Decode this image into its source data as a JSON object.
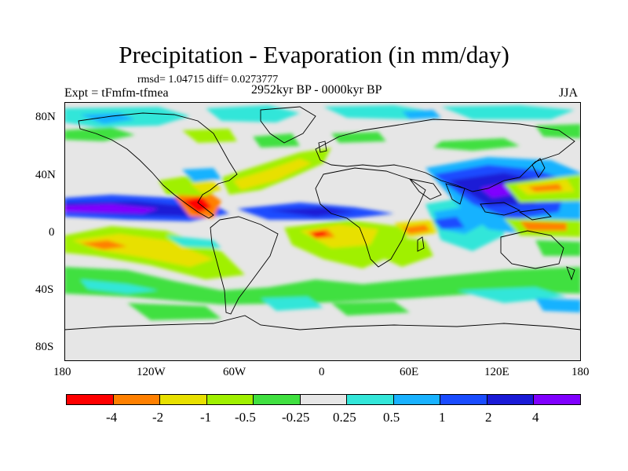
{
  "title": "Precipitation - Evaporation (in mm/day)",
  "stats": "rmsd= 1.04715 diff= 0.0273777",
  "experiment": "Expt = tFmfm-tfmea",
  "period": "2952kyr BP - 0000kyr BP",
  "season": "JJA",
  "axes": {
    "lat_ticks": [
      "80N",
      "40N",
      "0",
      "40S",
      "80S"
    ],
    "lon_ticks": [
      "180",
      "120W",
      "60W",
      "0",
      "60E",
      "120E",
      "180"
    ]
  },
  "colorbar": {
    "colors": [
      "#ff0000",
      "#ff8000",
      "#e8e000",
      "#a0f000",
      "#40e040",
      "#e6e6e6",
      "#33e6d9",
      "#19b2ff",
      "#1a4cff",
      "#1a1ad6",
      "#8000ff"
    ],
    "labels": [
      "-4",
      "-2",
      "-1",
      "-0.5",
      "-0.25",
      "0.25",
      "0.5",
      "1",
      "2",
      "4"
    ]
  },
  "colors": {
    "ocean_neutral": "#e6e6e6",
    "coast": "#000000"
  }
}
